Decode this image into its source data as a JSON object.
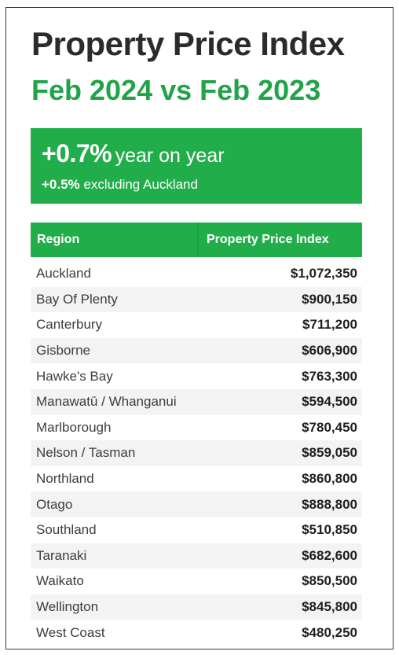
{
  "header": {
    "title": "Property Price Index",
    "subtitle": "Feb 2024 vs Feb 2023"
  },
  "banner": {
    "headline_value": "+0.7%",
    "headline_text": "year on year",
    "sub_value": "+0.5%",
    "sub_text": "excluding Auckland"
  },
  "table": {
    "columns": [
      "Region",
      "Property Price Index"
    ],
    "rows": [
      {
        "region": "Auckland",
        "value": "$1,072,350"
      },
      {
        "region": "Bay Of Plenty",
        "value": "$900,150"
      },
      {
        "region": "Canterbury",
        "value": "$711,200"
      },
      {
        "region": "Gisborne",
        "value": "$606,900"
      },
      {
        "region": "Hawke's Bay",
        "value": "$763,300"
      },
      {
        "region": "Manawatū / Whanganui",
        "value": "$594,500"
      },
      {
        "region": "Marlborough",
        "value": "$780,450"
      },
      {
        "region": "Nelson / Tasman",
        "value": "$859,050"
      },
      {
        "region": "Northland",
        "value": "$860,800"
      },
      {
        "region": "Otago",
        "value": "$888,800"
      },
      {
        "region": "Southland",
        "value": "$510,850"
      },
      {
        "region": "Taranaki",
        "value": "$682,600"
      },
      {
        "region": "Waikato",
        "value": "$850,500"
      },
      {
        "region": "Wellington",
        "value": "$845,800"
      },
      {
        "region": "West Coast",
        "value": "$480,250"
      }
    ]
  },
  "colors": {
    "accent_green": "#22ad4b",
    "title_dark": "#2b2b2b"
  }
}
